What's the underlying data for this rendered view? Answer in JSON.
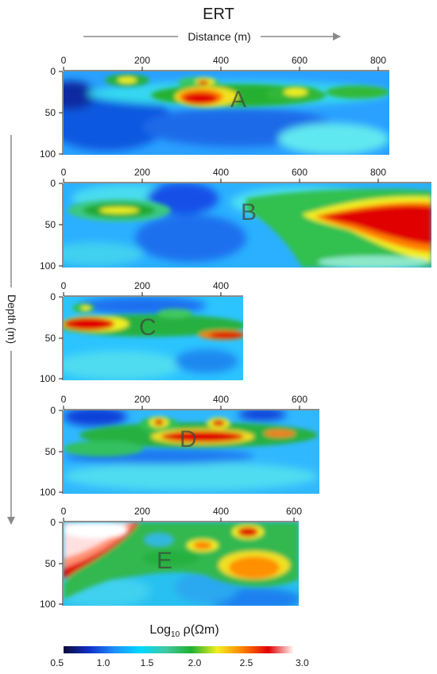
{
  "title": "ERT",
  "distance_label": "Distance (m)",
  "depth_label": "Depth (m)",
  "colorbar": {
    "label_main": "Log",
    "label_sub": "10",
    "label_rho": " ρ(Ωm)",
    "ticks": [
      "0.5",
      "1.0",
      "1.5",
      "2.0",
      "2.5",
      "3.0"
    ],
    "stops": [
      "#0a0a3a",
      "#1030c8",
      "#1e90ff",
      "#00d8ff",
      "#40c8a0",
      "#20b030",
      "#f0f020",
      "#ff8000",
      "#e00000",
      "#ffffff"
    ]
  },
  "sections": [
    {
      "letter": "A",
      "x_ticks": [
        "0",
        "200",
        "400",
        "600",
        "800"
      ],
      "depth_ticks": [
        "0",
        "50",
        "100"
      ]
    },
    {
      "letter": "B",
      "x_ticks": [
        "0",
        "200",
        "400",
        "600",
        "800"
      ],
      "depth_ticks": [
        "0",
        "50",
        "100"
      ]
    },
    {
      "letter": "C",
      "x_ticks": [
        "0",
        "200",
        "400"
      ],
      "depth_ticks": [
        "0",
        "50",
        "100"
      ]
    },
    {
      "letter": "D",
      "x_ticks": [
        "0",
        "200",
        "400",
        "600"
      ],
      "depth_ticks": [
        "0",
        "50",
        "100"
      ]
    },
    {
      "letter": "E",
      "x_ticks": [
        "0",
        "200",
        "400",
        "600"
      ],
      "depth_ticks": [
        "0",
        "50",
        "100"
      ]
    }
  ]
}
